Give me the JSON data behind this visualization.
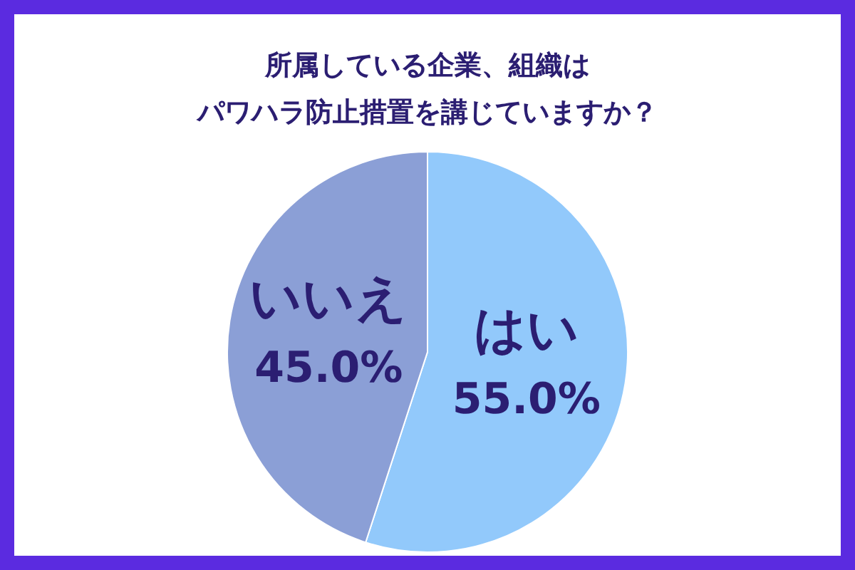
{
  "chart_data": {
    "type": "pie",
    "title": "所属している企業、組織は",
    "subtitle": "パワハラ防止措置を講じていますか？",
    "categories": [
      "はい",
      "いいえ"
    ],
    "values": [
      55,
      45
    ],
    "colors": [
      "#92c9fb",
      "#8b9fd6"
    ],
    "value_labels": [
      "55.0%",
      "45.0%"
    ],
    "legend": false
  }
}
